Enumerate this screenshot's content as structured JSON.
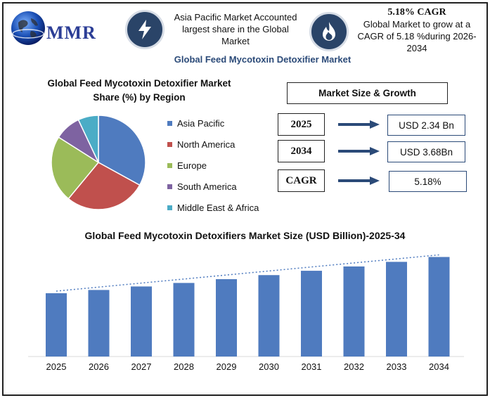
{
  "header": {
    "logo_text": "MMR",
    "region_note": "Asia Pacific Market Accounted largest share in the Global Market",
    "cagr_headline": "5.18% CAGR",
    "cagr_note": "Global Market to grow at a CAGR of 5.18 %during 2026-2034",
    "main_title": "Global Feed Mycotoxin Detoxifier Market",
    "icons": [
      "lightning-icon",
      "flame-icon",
      "globe-icon"
    ]
  },
  "market_size": {
    "title": "Market Size & Growth",
    "rows": [
      {
        "label": "2025",
        "value": "USD 2.34 Bn"
      },
      {
        "label": "2034",
        "value": "USD 3.68Bn"
      },
      {
        "label": "CAGR",
        "value": "5.18%"
      }
    ]
  },
  "chart_data": [
    {
      "type": "pie",
      "title": "Global Feed Mycotoxin Detoxifier Market Share (%) by Region",
      "categories": [
        "Asia Pacific",
        "North America",
        "Europe",
        "South America",
        "Middle East & Africa"
      ],
      "values": [
        33,
        28,
        23,
        9,
        7
      ],
      "colors": [
        "#4f7bbf",
        "#c0504d",
        "#9bbb59",
        "#7e63a1",
        "#4bacc6"
      ],
      "legend": "right"
    },
    {
      "type": "bar",
      "title": "Global Feed Mycotoxin Detoxifiers  Market Size (USD Billion)-2025-34",
      "categories": [
        "2025",
        "2026",
        "2027",
        "2028",
        "2029",
        "2030",
        "2031",
        "2032",
        "2033",
        "2034"
      ],
      "values": [
        2.34,
        2.46,
        2.59,
        2.72,
        2.86,
        3.01,
        3.17,
        3.33,
        3.5,
        3.68
      ],
      "ylim": [
        0,
        3.9
      ],
      "trendline": true,
      "color": "#4f7bbf"
    }
  ]
}
